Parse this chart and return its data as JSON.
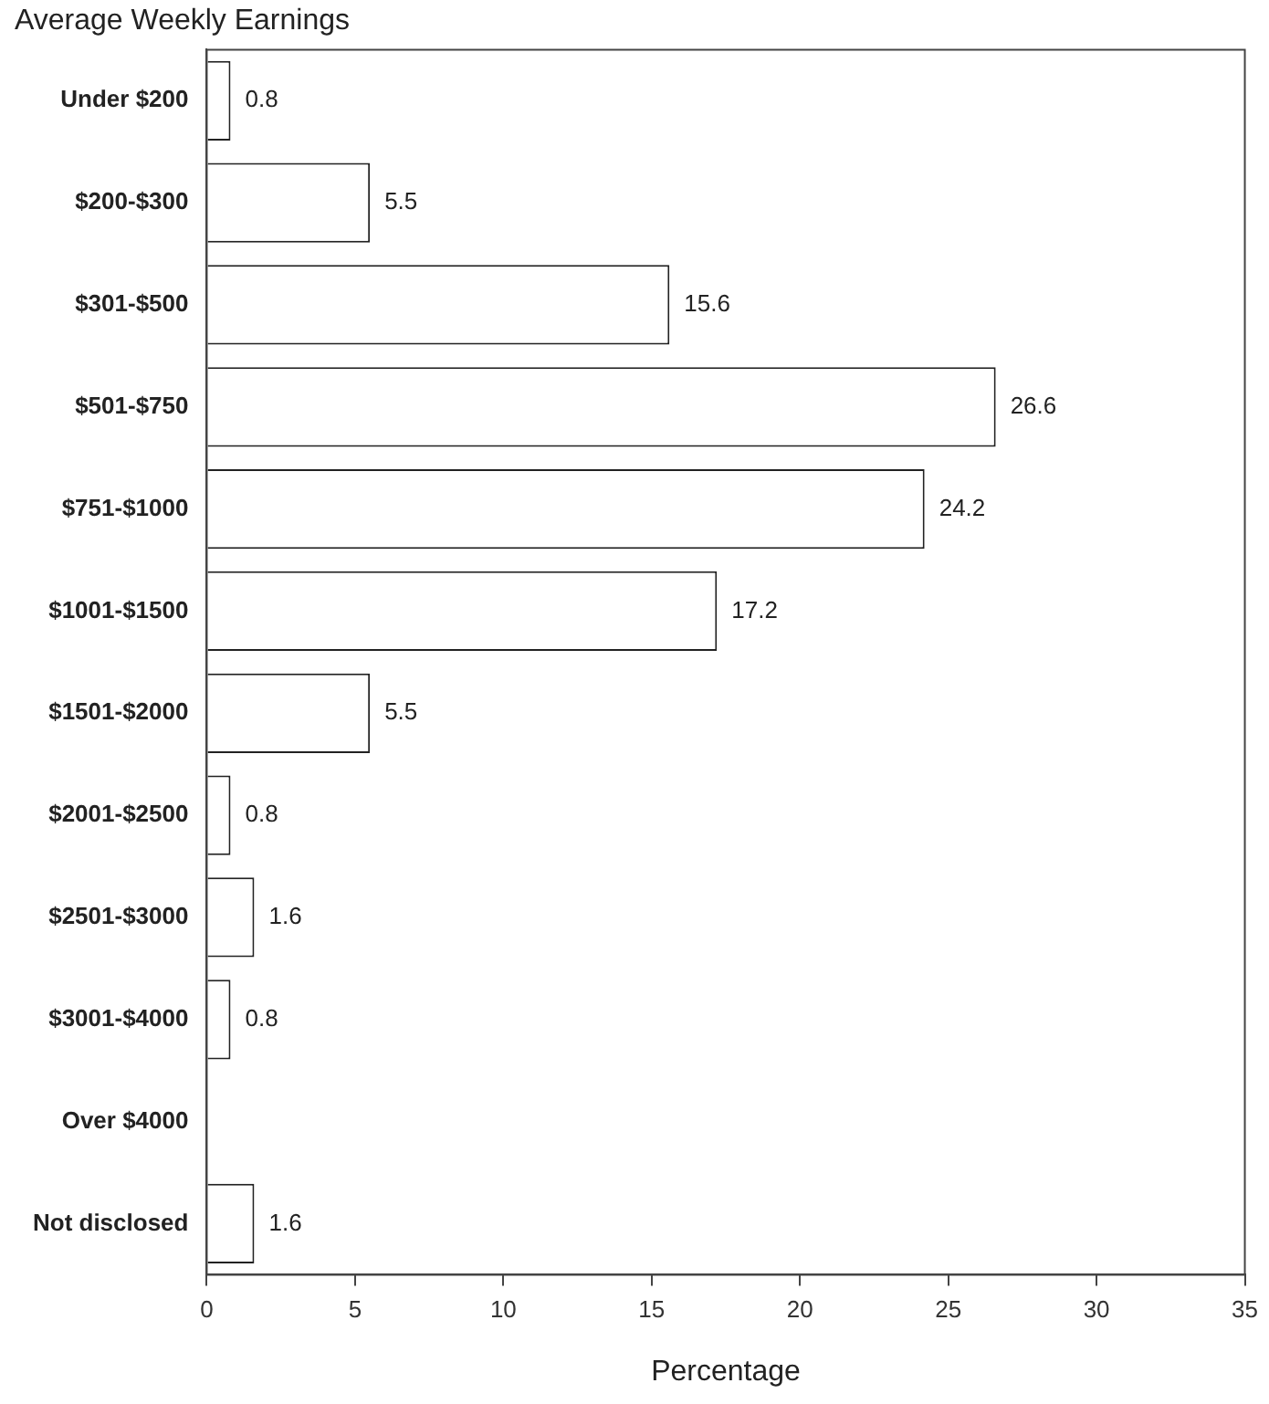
{
  "chart_data": {
    "type": "bar",
    "orientation": "horizontal",
    "title": "Average Weekly Earnings",
    "xlabel": "Percentage",
    "categories": [
      "Under $200",
      "$200-$300",
      "$301-$500",
      "$501-$750",
      "$751-$1000",
      "$1001-$1500",
      "$1501-$2000",
      "$2001-$2500",
      "$2501-$3000",
      "$3001-$4000",
      "Over $4000",
      "Not disclosed"
    ],
    "values": [
      0.8,
      5.5,
      15.6,
      26.6,
      24.2,
      17.2,
      5.5,
      0.8,
      1.6,
      0.8,
      0,
      1.6
    ],
    "value_labels": [
      "0.8",
      "5.5",
      "15.6",
      "26.6",
      "24.2",
      "17.2",
      "5.5",
      "0.8",
      "1.6",
      "0.8",
      null,
      "1.6"
    ],
    "color": "#ffffff",
    "xlim": [
      0,
      35
    ],
    "xticks": [
      0,
      5,
      10,
      15,
      20,
      25,
      30,
      35
    ],
    "grid": false,
    "legend": false
  }
}
